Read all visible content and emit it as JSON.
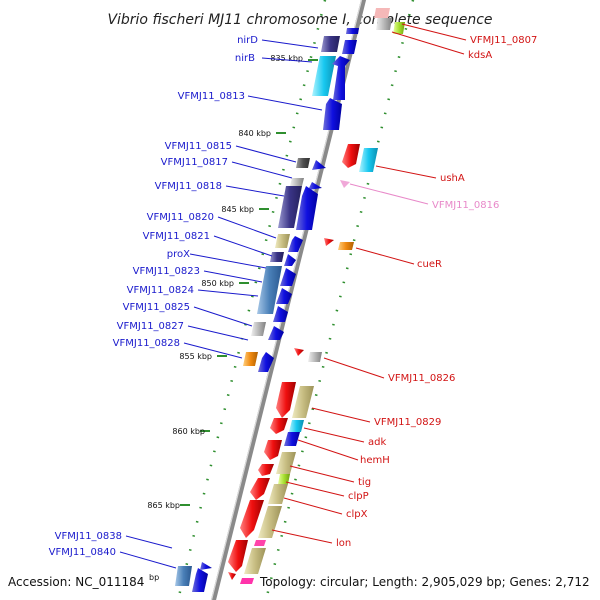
{
  "title": "Vibrio fischeri MJ11 chromosome I, complete sequence",
  "footer": {
    "accession": "Accession: NC_011184",
    "topology": "Topology: circular; Length: 2,905,029 bp; Genes: 2,712",
    "bp_unit": "bp"
  },
  "ticks": [
    "835 kbp",
    "840 kbp",
    "845 kbp",
    "850 kbp",
    "855 kbp",
    "860 kbp",
    "865 kbp"
  ],
  "labels_left": [
    "nirD",
    "nirB",
    "VFMJ11_0813",
    "VFMJ11_0815",
    "VFMJ11_0817",
    "VFMJ11_0818",
    "VFMJ11_0820",
    "VFMJ11_0821",
    "proX",
    "VFMJ11_0823",
    "VFMJ11_0824",
    "VFMJ11_0825",
    "VFMJ11_0827",
    "VFMJ11_0828",
    "VFMJ11_0838",
    "VFMJ11_0840"
  ],
  "labels_right": [
    "VFMJ11_0807",
    "kdsA",
    "ushA",
    "VFMJ11_0816",
    "cueR",
    "VFMJ11_0826",
    "VFMJ11_0829",
    "adk",
    "hemH",
    "tig",
    "clpP",
    "clpX",
    "lon"
  ],
  "colors": {
    "backbone": "#8a8a8a",
    "forward_strand": "#1010e0",
    "reverse_strand": "#e01010",
    "label_forward": "#1a1acc",
    "label_reverse": "#d21414",
    "label_pseudo": "#e889c9",
    "dots": "#2f8f2f"
  }
}
